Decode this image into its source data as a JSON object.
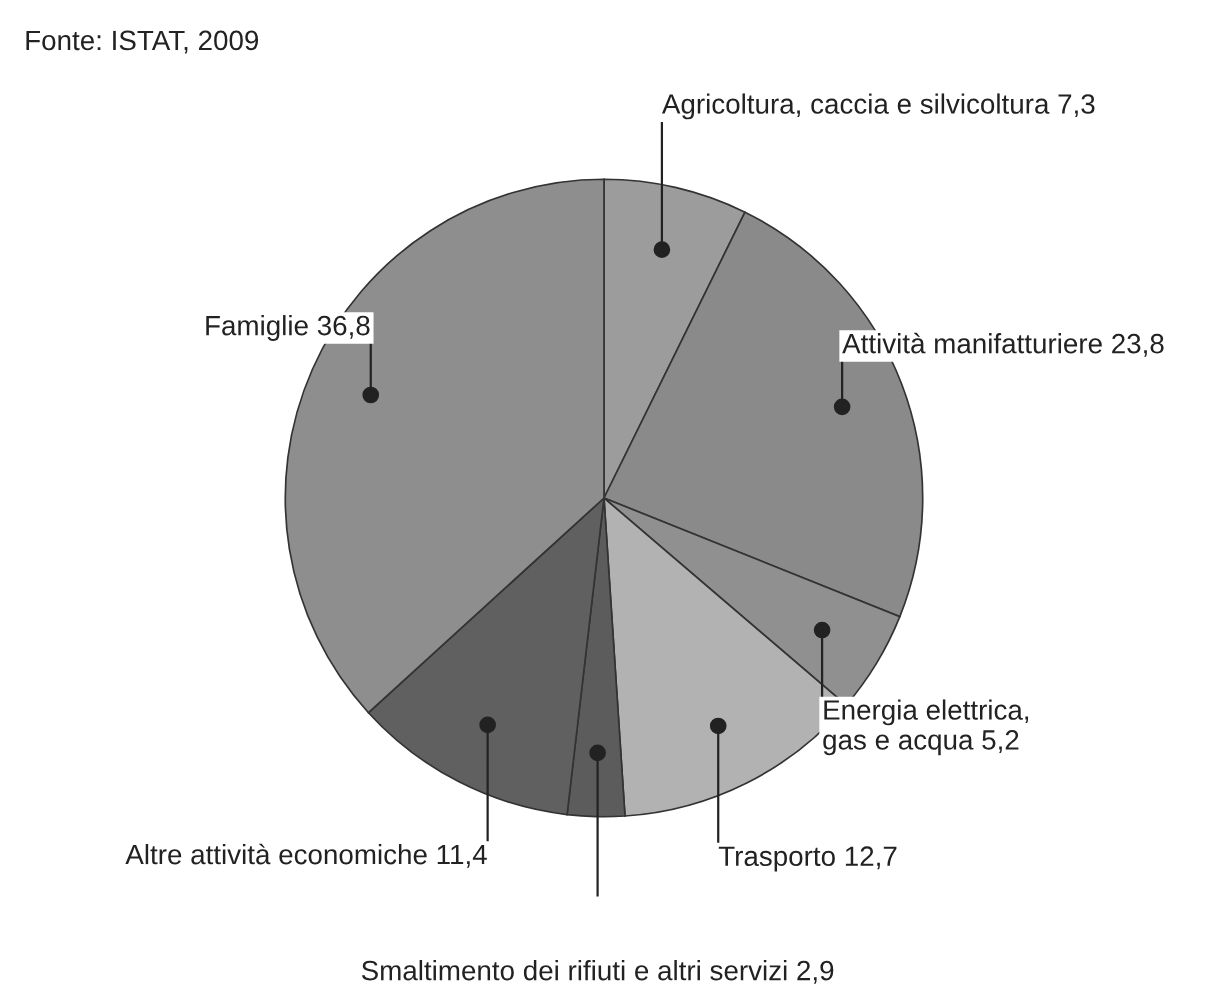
{
  "chart_data": {
    "type": "pie",
    "annotations": [
      "Fonte: ISTAT, 2009"
    ],
    "categories": [
      "Agricoltura, caccia e silvicoltura",
      "Attività manifatturiere",
      "Energia elettrica,\ngas e acqua",
      "Trasporto",
      "Smaltimento dei rifiuti e altri servizi",
      "Altre attività economiche",
      "Famiglie"
    ],
    "values": [
      7.3,
      23.8,
      5.2,
      12.7,
      2.9,
      11.4,
      36.8
    ],
    "value_labels": [
      "7,3",
      "23,8",
      "5,2",
      "12,7",
      "2,9",
      "11,4",
      "36,8"
    ],
    "colors": [
      "#9c9c9c",
      "#8a8a8a",
      "#909090",
      "#b2b2b2",
      "#5c5c5c",
      "#606060",
      "#8e8e8e"
    ]
  }
}
